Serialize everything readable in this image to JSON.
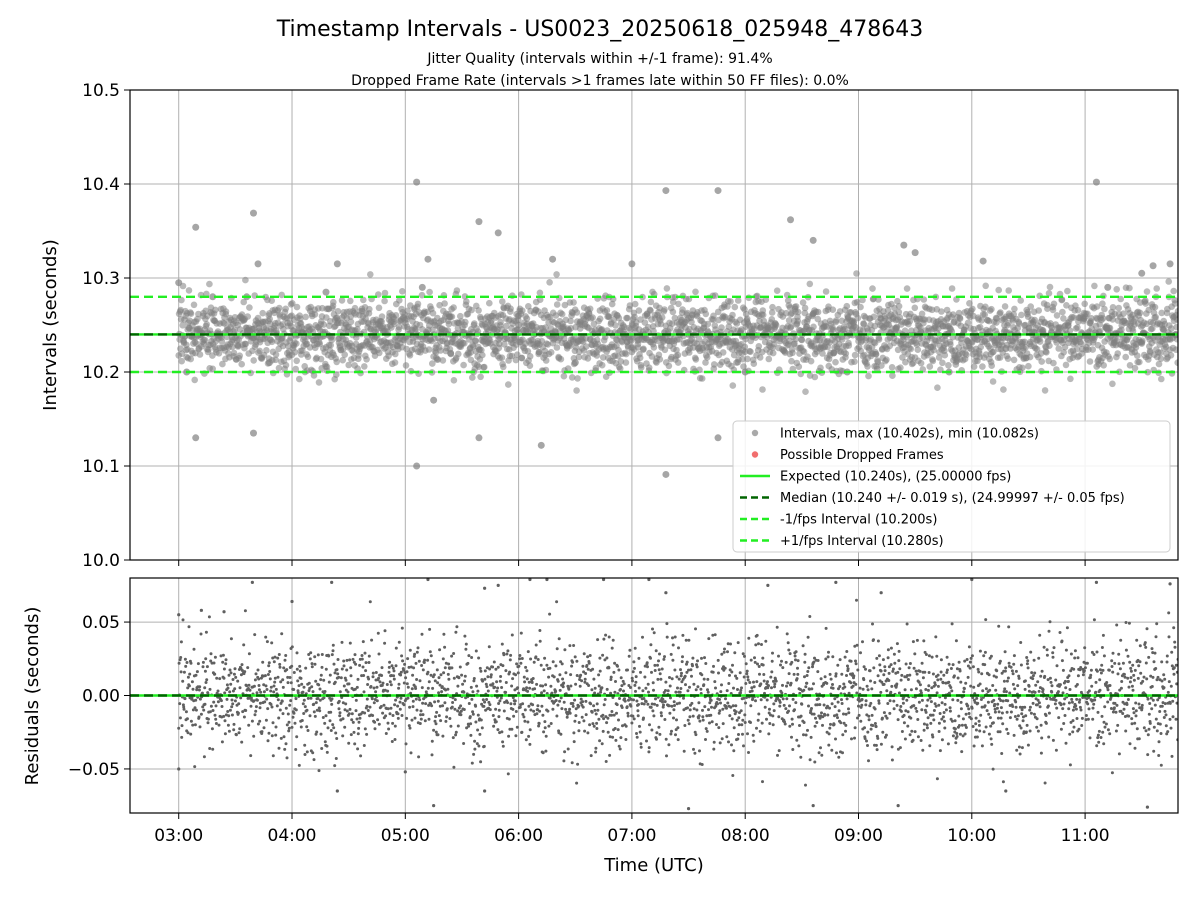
{
  "chart_data": {
    "type": "scatter",
    "title": "Timestamp Intervals - US0023_20250618_025948_478643",
    "subtitle_lines": [
      "Jitter Quality (intervals within +/-1 frame): 91.4%",
      "Dropped Frame Rate (intervals >1 frames late within 50 FF files): 0.0%"
    ],
    "xlabel": "Time (UTC)",
    "x_tick_labels": [
      "03:00",
      "04:00",
      "05:00",
      "06:00",
      "07:00",
      "08:00",
      "09:00",
      "10:00",
      "11:00"
    ],
    "x_range_hours": [
      2.57,
      11.82
    ],
    "grid": true,
    "panels": [
      {
        "id": "intervals",
        "ylabel": "Intervals (seconds)",
        "ylim": [
          10.0,
          10.5
        ],
        "y_tick_labels": [
          "10.0",
          "10.1",
          "10.2",
          "10.3",
          "10.4",
          "10.5"
        ],
        "y_ticks": [
          10.0,
          10.1,
          10.2,
          10.3,
          10.4,
          10.5
        ],
        "reference_lines": [
          {
            "value": 10.24,
            "color": "#22ee22",
            "style": "solid"
          },
          {
            "value": 10.24,
            "color": "#006400",
            "style": "dashed"
          },
          {
            "value": 10.2,
            "color": "#22ee22",
            "style": "dashed"
          },
          {
            "value": 10.28,
            "color": "#22ee22",
            "style": "dashed"
          }
        ],
        "series": [
          {
            "name": "Intervals, max (10.402s), min (10.082s)",
            "color": "#808080",
            "sample_points": [
              [
                3.0,
                10.295
              ],
              [
                3.07,
                10.2
              ],
              [
                3.15,
                10.13
              ],
              [
                3.15,
                10.354
              ],
              [
                3.3,
                10.28
              ],
              [
                3.6,
                10.28
              ],
              [
                3.66,
                10.369
              ],
              [
                3.66,
                10.135
              ],
              [
                3.7,
                10.315
              ],
              [
                3.8,
                10.21
              ],
              [
                4.3,
                10.285
              ],
              [
                4.4,
                10.315
              ],
              [
                5.1,
                10.402
              ],
              [
                5.1,
                10.1
              ],
              [
                5.15,
                10.29
              ],
              [
                5.2,
                10.32
              ],
              [
                5.25,
                10.17
              ],
              [
                5.4,
                10.22
              ],
              [
                5.65,
                10.36
              ],
              [
                5.65,
                10.13
              ],
              [
                5.82,
                10.348
              ],
              [
                6.0,
                10.25
              ],
              [
                6.2,
                10.122
              ],
              [
                6.3,
                10.32
              ],
              [
                6.5,
                10.21
              ],
              [
                7.0,
                10.315
              ],
              [
                7.3,
                10.393
              ],
              [
                7.3,
                10.091
              ],
              [
                7.5,
                10.24
              ],
              [
                7.76,
                10.393
              ],
              [
                7.76,
                10.13
              ],
              [
                8.0,
                10.2
              ],
              [
                8.4,
                10.362
              ],
              [
                8.6,
                10.34
              ],
              [
                8.9,
                10.2
              ],
              [
                9.4,
                10.335
              ],
              [
                9.5,
                10.327
              ],
              [
                9.8,
                10.2
              ],
              [
                10.1,
                10.318
              ],
              [
                10.3,
                10.225
              ],
              [
                11.1,
                10.402
              ],
              [
                11.2,
                10.29
              ],
              [
                11.5,
                10.305
              ],
              [
                11.6,
                10.313
              ],
              [
                11.75,
                10.315
              ],
              [
                11.8,
                10.24
              ]
            ]
          },
          {
            "name": "Possible Dropped Frames",
            "color": "#ee5555",
            "sample_points": []
          }
        ],
        "legend": {
          "placement": "lower right",
          "entries": [
            {
              "label": "Intervals, max (10.402s), min (10.082s)",
              "marker": "dot",
              "color": "#9a9a9a"
            },
            {
              "label": "Possible Dropped Frames",
              "marker": "dot",
              "color": "#ee5555"
            },
            {
              "label": "Expected (10.240s), (25.00000 fps)",
              "marker": "line",
              "color": "#22ee22",
              "dash": false
            },
            {
              "label": "Median (10.240 +/- 0.019 s), (24.99997 +/- 0.05 fps)",
              "marker": "line",
              "color": "#006400",
              "dash": true
            },
            {
              "label": "-1/fps Interval (10.200s)",
              "marker": "line",
              "color": "#22ee22",
              "dash": true
            },
            {
              "label": "+1/fps Interval (10.280s)",
              "marker": "line",
              "color": "#22ee22",
              "dash": true
            }
          ]
        }
      },
      {
        "id": "residuals",
        "ylabel": "Residuals (seconds)",
        "ylim": [
          -0.08,
          0.08
        ],
        "y_tick_labels": [
          "0.05",
          "0.00",
          "−0.05"
        ],
        "y_ticks": [
          0.05,
          0.0,
          -0.05
        ],
        "reference_lines": [
          {
            "value": 0.0,
            "color": "#22ee22",
            "style": "solid"
          },
          {
            "value": 0.0,
            "color": "#006400",
            "style": "dashed"
          }
        ],
        "series": [
          {
            "name": "Residuals",
            "color": "#606060",
            "sample_points": [
              [
                3.0,
                0.055
              ],
              [
                3.0,
                -0.05
              ],
              [
                3.2,
                0.058
              ],
              [
                3.4,
                0.057
              ],
              [
                3.65,
                0.077
              ],
              [
                4.0,
                0.064
              ],
              [
                4.35,
                0.077
              ],
              [
                4.4,
                -0.065
              ],
              [
                5.0,
                -0.052
              ],
              [
                5.2,
                0.079
              ],
              [
                5.25,
                -0.075
              ],
              [
                5.7,
                0.073
              ],
              [
                5.82,
                0.075
              ],
              [
                5.7,
                -0.065
              ],
              [
                6.1,
                0.079
              ],
              [
                6.25,
                0.079
              ],
              [
                6.75,
                0.079
              ],
              [
                7.15,
                0.079
              ],
              [
                7.3,
                0.07
              ],
              [
                7.5,
                -0.077
              ],
              [
                8.2,
                0.075
              ],
              [
                8.6,
                -0.075
              ],
              [
                8.8,
                0.077
              ],
              [
                9.2,
                0.07
              ],
              [
                9.35,
                -0.075
              ],
              [
                10.0,
                0.079
              ],
              [
                10.3,
                -0.065
              ],
              [
                11.1,
                0.077
              ],
              [
                11.55,
                -0.076
              ],
              [
                11.75,
                0.076
              ]
            ]
          }
        ]
      }
    ]
  }
}
